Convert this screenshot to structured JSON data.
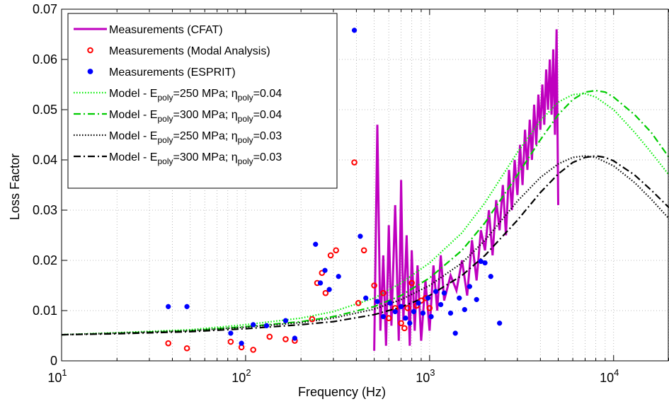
{
  "chart_data": {
    "type": "line",
    "xlabel": "Frequency (Hz)",
    "ylabel": "Loss Factor",
    "xscale": "log",
    "xlim": [
      10,
      20000
    ],
    "ylim": [
      0,
      0.07
    ],
    "grid": true,
    "legend_position": "top-left",
    "x_ticks": [
      {
        "value": 10,
        "base": "10",
        "exp": "1"
      },
      {
        "value": 100,
        "base": "10",
        "exp": "2"
      },
      {
        "value": 1000,
        "base": "10",
        "exp": "3"
      },
      {
        "value": 10000,
        "base": "10",
        "exp": "4"
      }
    ],
    "y_ticks": [
      {
        "value": 0,
        "label": "0"
      },
      {
        "value": 0.01,
        "label": "0.01"
      },
      {
        "value": 0.02,
        "label": "0.02"
      },
      {
        "value": 0.03,
        "label": "0.03"
      },
      {
        "value": 0.04,
        "label": "0.04"
      },
      {
        "value": 0.05,
        "label": "0.05"
      },
      {
        "value": 0.06,
        "label": "0.06"
      },
      {
        "value": 0.07,
        "label": "0.07"
      }
    ],
    "series": [
      {
        "name": "Measurements (CFAT)",
        "legend_parts": [
          {
            "t": "Measurements (CFAT)"
          }
        ],
        "style": "line",
        "color": "#bf00bf",
        "width": 3,
        "x": [
          500,
          520,
          540,
          560,
          580,
          600,
          620,
          650,
          680,
          700,
          720,
          750,
          780,
          800,
          830,
          860,
          900,
          950,
          1000,
          1050,
          1100,
          1150,
          1200,
          1300,
          1400,
          1500,
          1600,
          1700,
          1800,
          1900,
          2000,
          2100,
          2200,
          2300,
          2400,
          2500,
          2600,
          2700,
          2800,
          2900,
          3000,
          3100,
          3200,
          3300,
          3400,
          3500,
          3600,
          3700,
          3800,
          3900,
          4000,
          4100,
          4200,
          4300,
          4400,
          4500,
          4600,
          4700,
          4800,
          4900,
          5000
        ],
        "y": [
          0.002,
          0.047,
          0.006,
          0.021,
          0.003,
          0.027,
          0.007,
          0.031,
          0.004,
          0.036,
          0.008,
          0.025,
          0.003,
          0.022,
          0.006,
          0.019,
          0.004,
          0.016,
          0.006,
          0.019,
          0.01,
          0.021,
          0.012,
          0.017,
          0.014,
          0.02,
          0.013,
          0.024,
          0.016,
          0.026,
          0.022,
          0.03,
          0.021,
          0.032,
          0.026,
          0.035,
          0.025,
          0.038,
          0.03,
          0.04,
          0.033,
          0.043,
          0.035,
          0.046,
          0.038,
          0.048,
          0.04,
          0.051,
          0.043,
          0.053,
          0.046,
          0.055,
          0.047,
          0.058,
          0.05,
          0.06,
          0.049,
          0.062,
          0.045,
          0.066,
          0.031
        ]
      },
      {
        "name": "Measurements (Modal Analysis)",
        "legend_parts": [
          {
            "t": "Measurements (Modal Analysis)"
          }
        ],
        "style": "marker-circle",
        "color": "#ff0000",
        "x": [
          38,
          48,
          83,
          95,
          110,
          135,
          165,
          185,
          230,
          245,
          260,
          272,
          290,
          310,
          390,
          410,
          440,
          500,
          560,
          600,
          650,
          700,
          730,
          760,
          800,
          850,
          900,
          950,
          1000
        ],
        "y": [
          0.0035,
          0.0025,
          0.0038,
          0.0027,
          0.0022,
          0.0048,
          0.0043,
          0.004,
          0.0083,
          0.0155,
          0.0175,
          0.0135,
          0.021,
          0.022,
          0.0395,
          0.0115,
          0.022,
          0.015,
          0.0135,
          0.0085,
          0.0105,
          0.0075,
          0.0065,
          0.0105,
          0.0155,
          0.011,
          0.012,
          0.0125,
          0.0105
        ]
      },
      {
        "name": "Measurements (ESPRIT)",
        "legend_parts": [
          {
            "t": "Measurements (ESPRIT)"
          }
        ],
        "style": "marker-dot",
        "color": "#0000ff",
        "x": [
          38,
          48,
          83,
          95,
          110,
          130,
          165,
          185,
          240,
          255,
          270,
          285,
          320,
          390,
          420,
          450,
          520,
          560,
          610,
          650,
          700,
          740,
          780,
          820,
          870,
          920,
          980,
          1020,
          1080,
          1150,
          1200,
          1300,
          1380,
          1450,
          1550,
          1650,
          1800,
          1900,
          2000,
          2150,
          2400
        ],
        "y": [
          0.0108,
          0.0108,
          0.0055,
          0.0035,
          0.0072,
          0.007,
          0.008,
          0.0045,
          0.0232,
          0.0155,
          0.018,
          0.0142,
          0.0168,
          0.0658,
          0.0248,
          0.0125,
          0.0118,
          0.0088,
          0.0115,
          0.0098,
          0.0108,
          0.0085,
          0.0075,
          0.0098,
          0.0115,
          0.0095,
          0.0125,
          0.0088,
          0.0138,
          0.0112,
          0.0135,
          0.0095,
          0.0055,
          0.0125,
          0.0102,
          0.0148,
          0.0122,
          0.0198,
          0.0195,
          0.0168,
          0.0075
        ]
      },
      {
        "name": "Model - E_poly=250 MPa; η_poly=0.04",
        "legend_parts": [
          {
            "t": "Model - E"
          },
          {
            "t": "poly",
            "sub": true
          },
          {
            "t": "=250 MPa; η"
          },
          {
            "t": "poly",
            "sub": true
          },
          {
            "t": "=0.04"
          }
        ],
        "style": "dotted",
        "color": "#00ee00",
        "x": [
          10,
          20,
          50,
          100,
          200,
          300,
          500,
          700,
          1000,
          1500,
          2000,
          3000,
          4000,
          5000,
          6000,
          7000,
          8000,
          10000,
          13000,
          16000,
          20000
        ],
        "y": [
          0.0052,
          0.0056,
          0.0062,
          0.0072,
          0.0085,
          0.0098,
          0.0125,
          0.0155,
          0.0195,
          0.0255,
          0.0315,
          0.0415,
          0.0478,
          0.0515,
          0.053,
          0.0532,
          0.0525,
          0.05,
          0.0455,
          0.0415,
          0.037
        ]
      },
      {
        "name": "Model - E_poly=300 MPa; η_poly=0.04",
        "legend_parts": [
          {
            "t": "Model - E"
          },
          {
            "t": "poly",
            "sub": true
          },
          {
            "t": "=300 MPa; η"
          },
          {
            "t": "poly",
            "sub": true
          },
          {
            "t": "=0.04"
          }
        ],
        "style": "dashdot",
        "color": "#00cc00",
        "x": [
          10,
          20,
          50,
          100,
          200,
          300,
          500,
          700,
          1000,
          1500,
          2000,
          3000,
          4000,
          5000,
          6000,
          7000,
          8000,
          9000,
          10000,
          13000,
          16000,
          20000
        ],
        "y": [
          0.0052,
          0.0055,
          0.006,
          0.0068,
          0.0078,
          0.0088,
          0.0108,
          0.013,
          0.0165,
          0.022,
          0.0275,
          0.037,
          0.044,
          0.049,
          0.052,
          0.0535,
          0.0538,
          0.0535,
          0.0525,
          0.049,
          0.0455,
          0.0405
        ]
      },
      {
        "name": "Model - E_poly=250 MPa; η_poly=0.03",
        "legend_parts": [
          {
            "t": "Model - E"
          },
          {
            "t": "poly",
            "sub": true
          },
          {
            "t": "=250 MPa; η"
          },
          {
            "t": "poly",
            "sub": true
          },
          {
            "t": "=0.03"
          }
        ],
        "style": "dotted",
        "color": "#000000",
        "x": [
          10,
          20,
          50,
          100,
          200,
          300,
          500,
          700,
          1000,
          1500,
          2000,
          3000,
          4000,
          5000,
          6000,
          7000,
          8000,
          10000,
          13000,
          16000,
          20000
        ],
        "y": [
          0.0052,
          0.0055,
          0.006,
          0.0067,
          0.0076,
          0.0085,
          0.0103,
          0.0122,
          0.015,
          0.0195,
          0.024,
          0.0318,
          0.0365,
          0.0392,
          0.0405,
          0.0408,
          0.0405,
          0.0388,
          0.0355,
          0.0322,
          0.0283
        ]
      },
      {
        "name": "Model - E_poly=300 MPa; η_poly=0.03",
        "legend_parts": [
          {
            "t": "Model - E"
          },
          {
            "t": "poly",
            "sub": true
          },
          {
            "t": "=300 MPa; η"
          },
          {
            "t": "poly",
            "sub": true
          },
          {
            "t": "=0.03"
          }
        ],
        "style": "dashdot",
        "color": "#000000",
        "x": [
          10,
          20,
          50,
          100,
          200,
          300,
          500,
          700,
          1000,
          1500,
          2000,
          3000,
          4000,
          5000,
          6000,
          7000,
          8000,
          9000,
          10000,
          13000,
          16000,
          20000
        ],
        "y": [
          0.0052,
          0.0054,
          0.0058,
          0.0064,
          0.0072,
          0.0078,
          0.0092,
          0.0107,
          0.013,
          0.017,
          0.021,
          0.028,
          0.0335,
          0.0372,
          0.0395,
          0.0405,
          0.0408,
          0.0405,
          0.0398,
          0.037,
          0.034,
          0.0305
        ]
      }
    ]
  }
}
